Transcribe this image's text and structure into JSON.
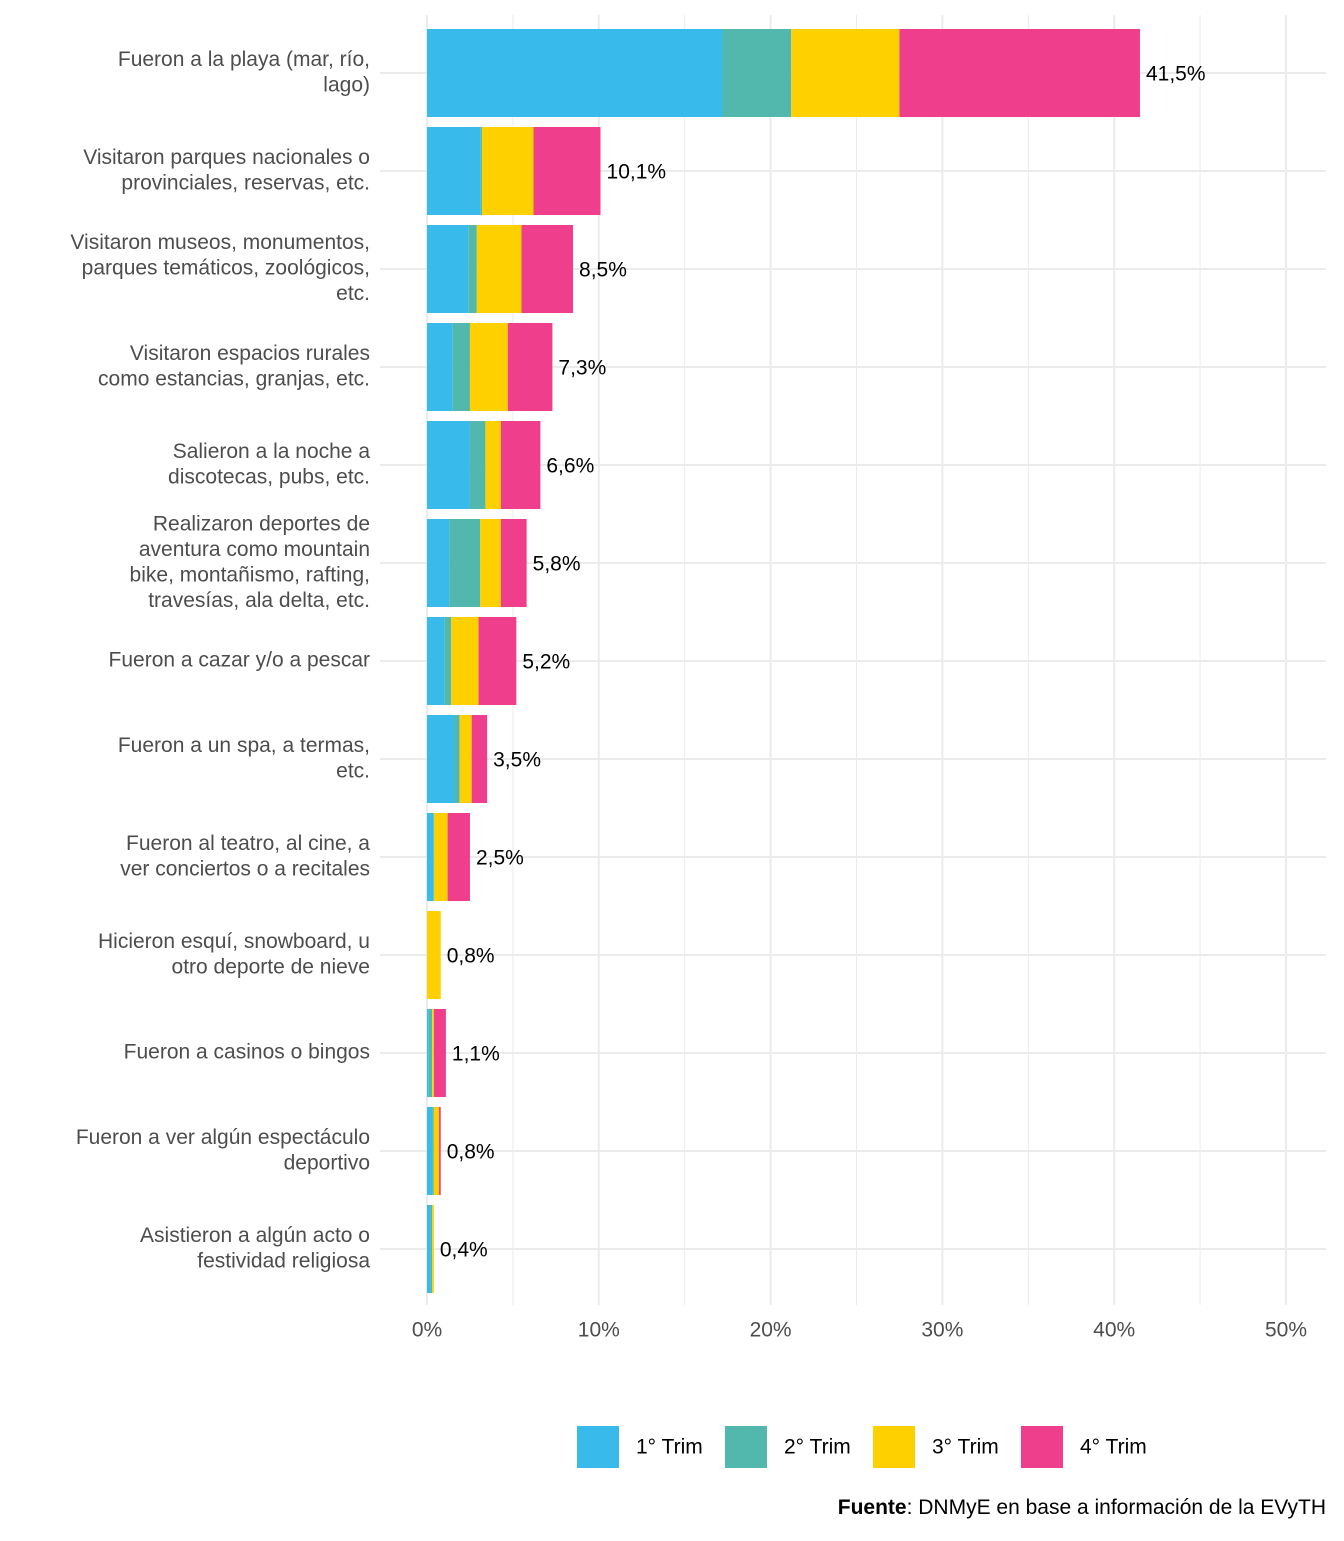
{
  "chart_data": {
    "type": "stacked-bar-horizontal",
    "categories": [
      [
        "Fueron a la playa (mar, río,",
        "lago)"
      ],
      [
        "Visitaron parques nacionales o",
        "provinciales, reservas, etc."
      ],
      [
        "Visitaron museos, monumentos,",
        "parques temáticos, zoológicos,",
        "etc."
      ],
      [
        "Visitaron espacios rurales",
        "como estancias, granjas, etc."
      ],
      [
        "Salieron a la noche a",
        "discotecas, pubs, etc."
      ],
      [
        "Realizaron deportes de",
        "aventura como mountain",
        "bike, montañismo, rafting,",
        "travesías, ala delta, etc."
      ],
      [
        "Fueron a cazar y/o a pescar"
      ],
      [
        "Fueron a un spa, a termas,",
        "etc."
      ],
      [
        "Fueron al teatro, al cine, a",
        "ver conciertos o a recitales"
      ],
      [
        "Hicieron esquí, snowboard, u",
        "otro deporte de nieve"
      ],
      [
        "Fueron a casinos o bingos"
      ],
      [
        "Fueron a ver algún espectáculo",
        "deportivo"
      ],
      [
        "Asistieron a algún acto o",
        "festividad religiosa"
      ]
    ],
    "series": [
      {
        "name": "1° Trim",
        "color": "#38bbea",
        "values": [
          17.2,
          3.1,
          2.4,
          1.5,
          2.5,
          1.3,
          1.0,
          1.6,
          0.4,
          0,
          0.1,
          0.3,
          0.2
        ]
      },
      {
        "name": "2° Trim",
        "color": "#52b8ad",
        "values": [
          4.0,
          0.1,
          0.5,
          1.0,
          0.9,
          1.8,
          0.4,
          0.3,
          0,
          0,
          0.2,
          0.1,
          0.1
        ]
      },
      {
        "name": "3° Trim",
        "color": "#ffd000",
        "values": [
          6.3,
          3.0,
          2.6,
          2.2,
          0.9,
          1.2,
          1.6,
          0.7,
          0.8,
          0.8,
          0.1,
          0.3,
          0.1
        ]
      },
      {
        "name": "4° Trim",
        "color": "#ef3f8c",
        "values": [
          14.0,
          3.9,
          3.0,
          2.6,
          2.3,
          1.5,
          2.2,
          0.9,
          1.3,
          0,
          0.7,
          0.1,
          0
        ]
      }
    ],
    "totals": [
      41.5,
      10.1,
      8.5,
      7.3,
      6.6,
      5.8,
      5.2,
      3.5,
      2.5,
      0.8,
      1.1,
      0.8,
      0.4
    ],
    "total_labels": [
      "41,5%",
      "10,1%",
      "8,5%",
      "7,3%",
      "6,6%",
      "5,8%",
      "5,2%",
      "3,5%",
      "2,5%",
      "0,8%",
      "1,1%",
      "0,8%",
      "0,4%"
    ],
    "xlim": [
      0,
      50
    ],
    "xticks": [
      {
        "value": 0,
        "label": "0%"
      },
      {
        "value": 10,
        "label": "10%"
      },
      {
        "value": 20,
        "label": "20%"
      },
      {
        "value": 30,
        "label": "30%"
      },
      {
        "value": 40,
        "label": "40%"
      },
      {
        "value": 50,
        "label": "50%"
      }
    ],
    "grid": true,
    "legend": "bottom",
    "source_label": "Fuente",
    "source_text": ": DNMyE en base a información de la EVyTH"
  }
}
